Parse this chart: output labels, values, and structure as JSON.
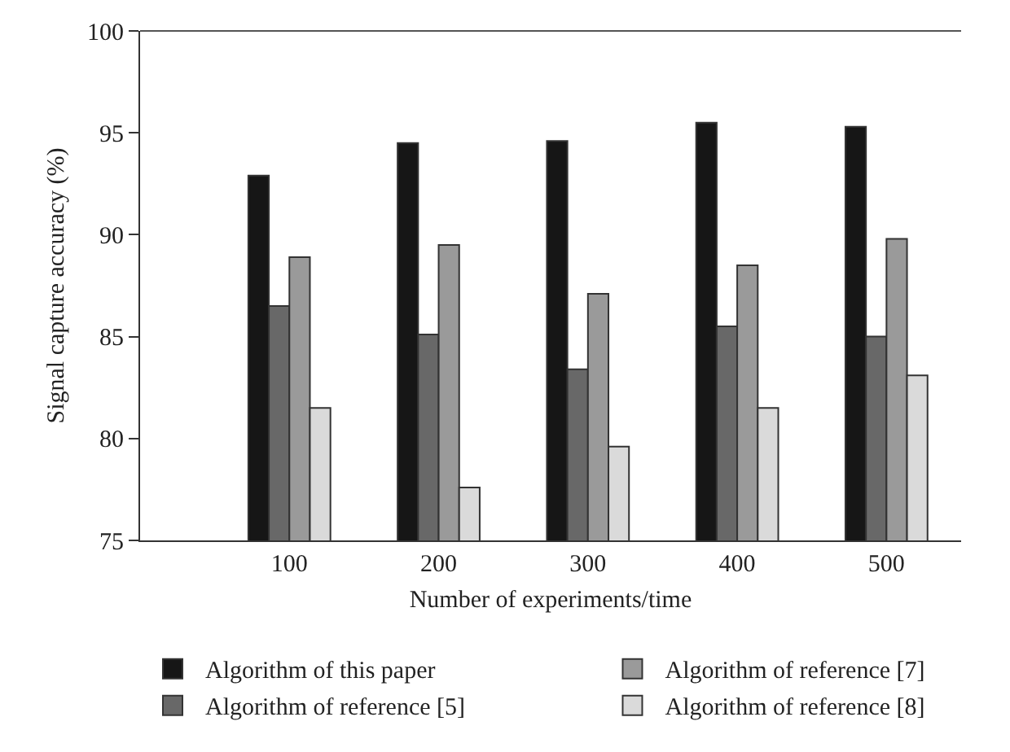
{
  "chart_data": {
    "type": "bar",
    "xlabel": "Number of experiments/time",
    "ylabel": "Signal capture accuracy (%)",
    "x": [
      100,
      200,
      300,
      400,
      500
    ],
    "xlim": [
      0,
      550
    ],
    "xticks": [
      100,
      200,
      300,
      400,
      500
    ],
    "ylim": [
      75,
      100
    ],
    "yticks": [
      75,
      80,
      85,
      90,
      95,
      100
    ],
    "grid": false,
    "legend": "bottom",
    "series": [
      {
        "name": "Algorithm of this paper",
        "color": "#161616",
        "values": [
          92.9,
          94.5,
          94.6,
          95.5,
          95.3
        ]
      },
      {
        "name": "Algorithm of reference [5]",
        "color": "#686868",
        "values": [
          86.5,
          85.1,
          83.4,
          85.5,
          85.0
        ]
      },
      {
        "name": "Algorithm of reference [7]",
        "color": "#9a9a9a",
        "values": [
          88.9,
          89.5,
          87.1,
          88.5,
          89.8
        ]
      },
      {
        "name": "Algorithm of reference [8]",
        "color": "#dadada",
        "values": [
          81.5,
          77.6,
          79.6,
          81.5,
          83.1
        ]
      }
    ]
  }
}
